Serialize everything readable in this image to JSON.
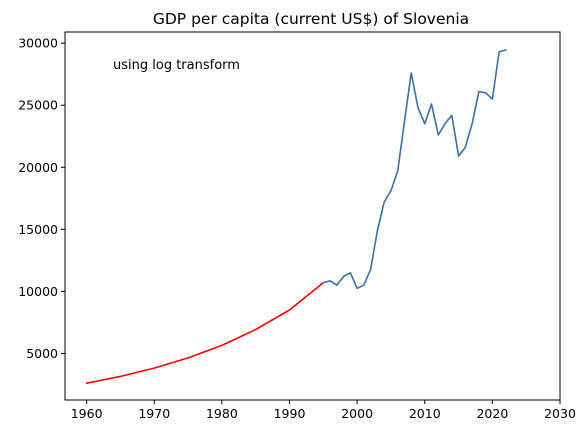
{
  "chart_data": {
    "type": "line",
    "title": "GDP per capita (current US$) of Slovenia",
    "xlabel": "",
    "ylabel": "",
    "xlim": [
      1956.8,
      2030
    ],
    "ylim": [
      1250,
      30900
    ],
    "xticks": [
      1960,
      1970,
      1980,
      1990,
      2000,
      2010,
      2020,
      2030
    ],
    "yticks": [
      5000,
      10000,
      15000,
      20000,
      25000,
      30000
    ],
    "grid": false,
    "annotation": "using log transform",
    "series": [
      {
        "color": "#ff0000",
        "x": [
          1960,
          1965,
          1970,
          1975,
          1980,
          1985,
          1990,
          1995
        ],
        "y": [
          2600,
          3150,
          3820,
          4640,
          5650,
          6930,
          8500,
          10700
        ]
      },
      {
        "color": "#3a6fa8",
        "x": [
          1995,
          1996,
          1997,
          1998,
          1999,
          2000,
          2001,
          2002,
          2003,
          2004,
          2005,
          2006,
          2007,
          2008,
          2009,
          2010,
          2011,
          2012,
          2013,
          2014,
          2015,
          2016,
          2017,
          2018,
          2019,
          2020,
          2021,
          2022
        ],
        "y": [
          10700,
          10850,
          10500,
          11200,
          11500,
          10250,
          10500,
          11800,
          14900,
          17200,
          18100,
          19700,
          23700,
          27600,
          24800,
          23500,
          25100,
          22600,
          23500,
          24200,
          20900,
          21600,
          23500,
          26100,
          26000,
          25500,
          29300,
          29450
        ]
      }
    ]
  }
}
